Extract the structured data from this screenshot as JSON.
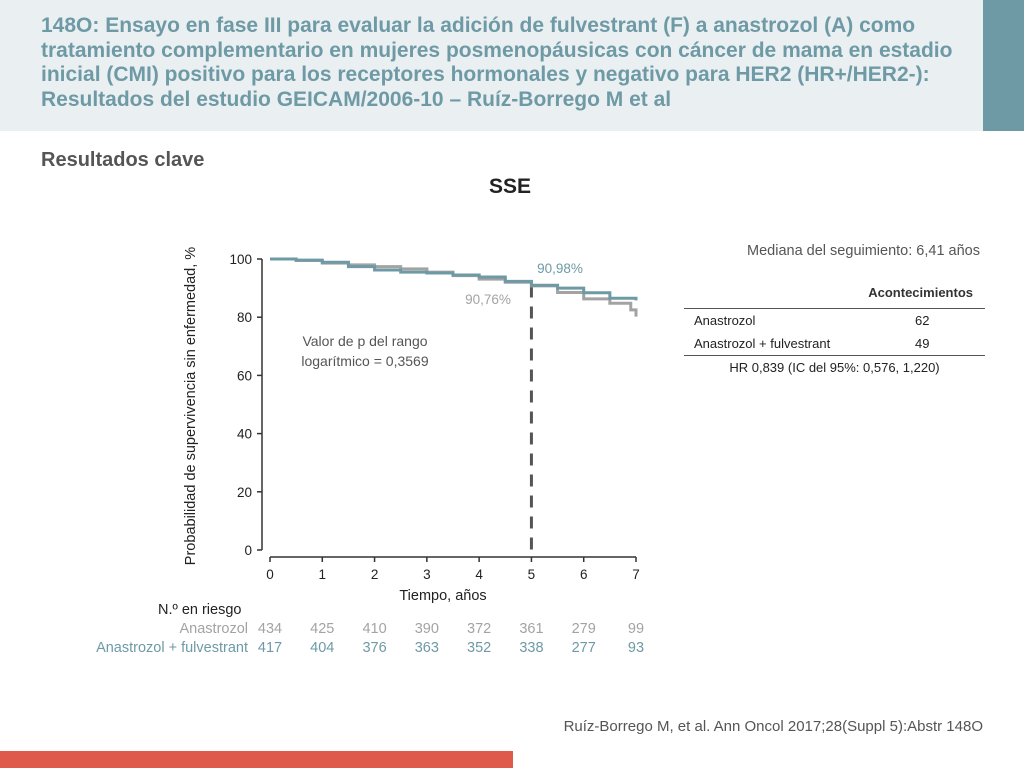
{
  "header": {
    "title": "148O: Ensayo en fase III para evaluar la adición de fulvestrant (F) a anastrozol (A) como tratamiento complementario en mujeres posmenopáusicas con cáncer de mama en estadio inicial (CMI) positivo para los receptores hormonales y negativo para HER2 (HR+/HER2-): Resultados del estudio GEICAM/2006-10 – Ruíz-Borrego M et al"
  },
  "section_title": "Resultados clave",
  "colors": {
    "header_bg": "#eaeff1",
    "accent": "#6e9aa6",
    "anastrozol": "#a3a3a3",
    "anastrozol_fulvestrant": "#6e9aa6",
    "footer_bar": "#e05a4b"
  },
  "chart_data": {
    "type": "line",
    "title": "SSE",
    "xlabel": "Tiempo, años",
    "ylabel": "Probabilidad de supervivencia sin enfermedad, %",
    "xlim": [
      0,
      7
    ],
    "ylim": [
      0,
      100
    ],
    "xticks": [
      "0",
      "1",
      "2",
      "3",
      "4",
      "5",
      "6",
      "7"
    ],
    "yticks": [
      "0",
      "20",
      "40",
      "60",
      "80",
      "100"
    ],
    "reference_line_x": 5,
    "series": [
      {
        "name": "Anastrozol",
        "color": "#a3a3a3",
        "x": [
          0,
          0.5,
          1,
          1.5,
          2,
          2.5,
          3,
          3.5,
          4,
          4.5,
          5,
          5.5,
          6,
          6.5,
          6.9,
          7
        ],
        "y": [
          100,
          99.5,
          98.6,
          98,
          97.4,
          96.6,
          95.5,
          94.3,
          93.1,
          92,
          90.76,
          88.5,
          86.3,
          84.8,
          82.5,
          80.2
        ]
      },
      {
        "name": "Anastrozol + fulvestrant",
        "color": "#6e9aa6",
        "x": [
          0,
          0.5,
          1,
          1.5,
          2,
          2.5,
          3,
          3.5,
          4,
          4.5,
          5,
          5.5,
          6,
          6.5,
          7
        ],
        "y": [
          100,
          99.6,
          98.9,
          97.4,
          96.2,
          95.5,
          95.2,
          94.5,
          93.8,
          92.3,
          90.98,
          90,
          88.4,
          86.5,
          85.8
        ]
      }
    ],
    "annotations": {
      "a_pct": "90,76%",
      "af_pct": "90,98%",
      "pvalue_line1": "Valor de p del rango",
      "pvalue_line2": "logarítmico = 0,3569"
    },
    "at_risk": {
      "title": "N.º en riesgo",
      "anastrozol_label": "Anastrozol",
      "af_label": "Anastrozol + fulvestrant",
      "anastrozol": [
        "434",
        "425",
        "410",
        "390",
        "372",
        "361",
        "279",
        "99"
      ],
      "af": [
        "417",
        "404",
        "376",
        "363",
        "352",
        "338",
        "277",
        "93"
      ]
    }
  },
  "followup": "Mediana del seguimiento: 6,41 años",
  "events_table": {
    "header": "Acontecimientos",
    "rows": [
      {
        "label": "Anastrozol",
        "value": "62"
      },
      {
        "label": "Anastrozol + fulvestrant",
        "value": "49"
      }
    ],
    "hr": "HR 0,839 (IC del 95%: 0,576, 1,220)"
  },
  "citation": "Ruíz-Borrego M, et al. Ann Oncol 2017;28(Suppl 5):Abstr 148O"
}
